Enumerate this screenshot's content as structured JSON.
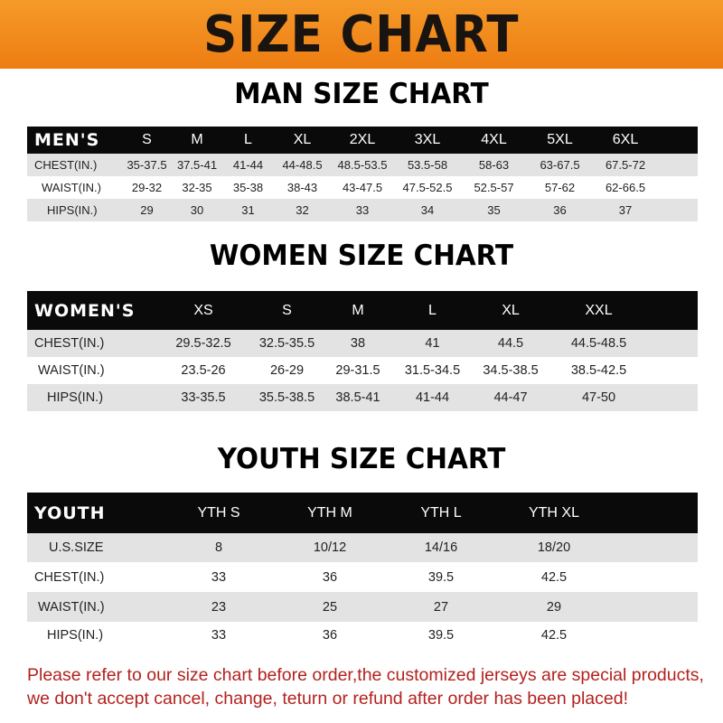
{
  "title": "SIZE CHART",
  "colors": {
    "banner": "#f08a1c",
    "header_row": "#0a0a0a",
    "stripe": "#e3e3e3",
    "notice": "#b2221e"
  },
  "men": {
    "title": "MAN SIZE CHART",
    "header": [
      "MEN'S",
      "S",
      "M",
      "L",
      "XL",
      "2XL",
      "3XL",
      "4XL",
      "5XL",
      "6XL"
    ],
    "rows": [
      [
        "CHEST(IN.)",
        "35-37.5",
        "37.5-41",
        "41-44",
        "44-48.5",
        "48.5-53.5",
        "53.5-58",
        "58-63",
        "63-67.5",
        "67.5-72"
      ],
      [
        "WAIST(IN.)",
        "29-32",
        "32-35",
        "35-38",
        "38-43",
        "43-47.5",
        "47.5-52.5",
        "52.5-57",
        "57-62",
        "62-66.5"
      ],
      [
        "HIPS(IN.)",
        "29",
        "30",
        "31",
        "32",
        "33",
        "34",
        "35",
        "36",
        "37"
      ]
    ]
  },
  "women": {
    "title": "WOMEN SIZE CHART",
    "header": [
      "WOMEN'S",
      "XS",
      "S",
      "M",
      "L",
      "XL",
      "XXL"
    ],
    "rows": [
      [
        "CHEST(IN.)",
        "29.5-32.5",
        "32.5-35.5",
        "38",
        "41",
        "44.5",
        "44.5-48.5"
      ],
      [
        "WAIST(IN.)",
        "23.5-26",
        "26-29",
        "29-31.5",
        "31.5-34.5",
        "34.5-38.5",
        "38.5-42.5"
      ],
      [
        "HIPS(IN.)",
        "33-35.5",
        "35.5-38.5",
        "38.5-41",
        "41-44",
        "44-47",
        "47-50"
      ]
    ]
  },
  "youth": {
    "title": "YOUTH SIZE CHART",
    "header": [
      "YOUTH",
      "YTH S",
      "YTH M",
      "YTH L",
      "YTH XL"
    ],
    "rows": [
      [
        "U.S.SIZE",
        "8",
        "10/12",
        "14/16",
        "18/20"
      ],
      [
        "CHEST(IN.)",
        "33",
        "36",
        "39.5",
        "42.5"
      ],
      [
        "WAIST(IN.)",
        "23",
        "25",
        "27",
        "29"
      ],
      [
        "HIPS(IN.)",
        "33",
        "36",
        "39.5",
        "42.5"
      ]
    ]
  },
  "notice": "Please refer to our size chart before order,the customized jerseys are special products, we don't accept cancel, change, teturn or refund after order has been placed!"
}
